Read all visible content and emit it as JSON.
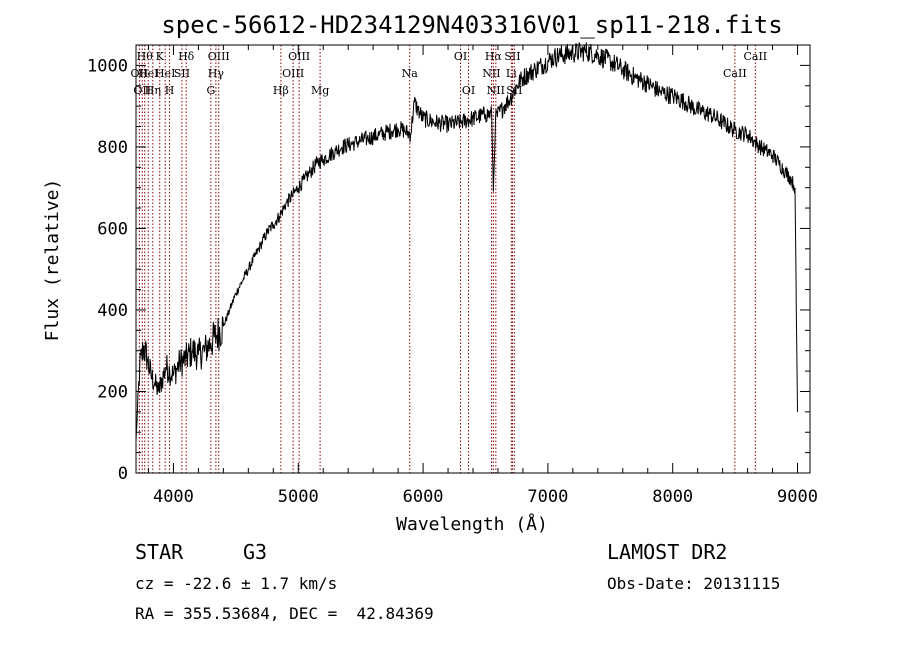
{
  "chart_data": {
    "type": "line",
    "title": "spec-56612-HD234129N403316V01_sp11-218.fits",
    "xlabel": "Wavelength (Å)",
    "ylabel": "Flux (relative)",
    "xlim": [
      3700,
      9100
    ],
    "ylim": [
      0,
      1050
    ],
    "xticks": [
      4000,
      5000,
      6000,
      7000,
      8000,
      9000
    ],
    "yticks": [
      0,
      200,
      400,
      600,
      800,
      1000
    ],
    "grid": false,
    "line_color": "#000000",
    "marker_color": "#8b0000",
    "series": [
      {
        "x": [
          3700,
          3730,
          3760,
          3790,
          3820,
          3850,
          3880,
          3910,
          3940,
          3970,
          4000,
          4050,
          4100,
          4150,
          4200,
          4250,
          4300,
          4350,
          4400,
          4450,
          4500,
          4550,
          4600,
          4650,
          4700,
          4750,
          4800,
          4850,
          4900,
          4950,
          5000,
          5050,
          5100,
          5150,
          5200,
          5250,
          5300,
          5350,
          5400,
          5450,
          5500,
          5550,
          5600,
          5650,
          5700,
          5750,
          5800,
          5850,
          5900,
          5930,
          5960,
          6000,
          6100,
          6200,
          6300,
          6400,
          6500,
          6550,
          6563,
          6580,
          6650,
          6700,
          6750,
          6800,
          6850,
          6900,
          6950,
          7000,
          7050,
          7100,
          7200,
          7300,
          7400,
          7500,
          7600,
          7700,
          7800,
          7900,
          8000,
          8100,
          8200,
          8300,
          8400,
          8500,
          8550,
          8600,
          8650,
          8700,
          8750,
          8800,
          8850,
          8900,
          8950,
          8980,
          8990,
          9000
        ],
        "y": [
          80,
          260,
          310,
          280,
          240,
          220,
          200,
          230,
          260,
          250,
          240,
          270,
          280,
          300,
          290,
          300,
          320,
          340,
          360,
          400,
          440,
          470,
          500,
          530,
          560,
          590,
          610,
          630,
          660,
          680,
          700,
          720,
          740,
          760,
          770,
          780,
          790,
          800,
          805,
          810,
          815,
          820,
          825,
          830,
          835,
          840,
          845,
          840,
          830,
          910,
          890,
          870,
          860,
          855,
          860,
          870,
          880,
          880,
          690,
          870,
          900,
          920,
          950,
          970,
          980,
          990,
          1000,
          1010,
          1020,
          1025,
          1030,
          1035,
          1025,
          1010,
          990,
          970,
          955,
          935,
          925,
          910,
          890,
          880,
          860,
          840,
          835,
          830,
          815,
          800,
          790,
          780,
          760,
          740,
          720,
          700,
          400,
          150
        ]
      }
    ],
    "line_markers": [
      {
        "x": 3727,
        "label": "OII",
        "row": 2
      },
      {
        "x": 3750,
        "label": "OII",
        "row": 3
      },
      {
        "x": 3770,
        "label": "Hθ",
        "row": 1
      },
      {
        "x": 3798,
        "label": "HeI",
        "row": 2
      },
      {
        "x": 3835,
        "label": "Hη",
        "row": 3
      },
      {
        "x": 3890,
        "label": "K",
        "row": 1
      },
      {
        "x": 3934,
        "label": "HeI",
        "row": 2
      },
      {
        "x": 3969,
        "label": "H",
        "row": 3
      },
      {
        "x": 4068,
        "label": "SII",
        "row": 2
      },
      {
        "x": 4102,
        "label": "Hδ",
        "row": 1
      },
      {
        "x": 4300,
        "label": "G",
        "row": 3
      },
      {
        "x": 4340,
        "label": "Hγ",
        "row": 2
      },
      {
        "x": 4363,
        "label": "OIII",
        "row": 1
      },
      {
        "x": 4861,
        "label": "Hβ",
        "row": 3
      },
      {
        "x": 4959,
        "label": "OIII",
        "row": 2
      },
      {
        "x": 5007,
        "label": "OIII",
        "row": 1
      },
      {
        "x": 5175,
        "label": "Mg",
        "row": 3
      },
      {
        "x": 5893,
        "label": "Na",
        "row": 2
      },
      {
        "x": 6300,
        "label": "OI",
        "row": 1
      },
      {
        "x": 6364,
        "label": "OI",
        "row": 3
      },
      {
        "x": 6548,
        "label": "NII",
        "row": 2
      },
      {
        "x": 6563,
        "label": "Hα",
        "row": 1
      },
      {
        "x": 6583,
        "label": "NII",
        "row": 3
      },
      {
        "x": 6707,
        "label": "Li",
        "row": 2
      },
      {
        "x": 6716,
        "label": "SII",
        "row": 1
      },
      {
        "x": 6731,
        "label": "SII",
        "row": 3
      },
      {
        "x": 8498,
        "label": "CaII",
        "row": 2
      },
      {
        "x": 8662,
        "label": "CaII",
        "row": 1
      }
    ]
  },
  "info": {
    "object_type": "STAR",
    "subclass": "G3",
    "survey": "LAMOST DR2",
    "redshift": "cz = -22.6 ± 1.7 km/s",
    "obs_date": "Obs-Date: 20131115",
    "coords": "RA = 355.53684, DEC =  42.84369"
  }
}
